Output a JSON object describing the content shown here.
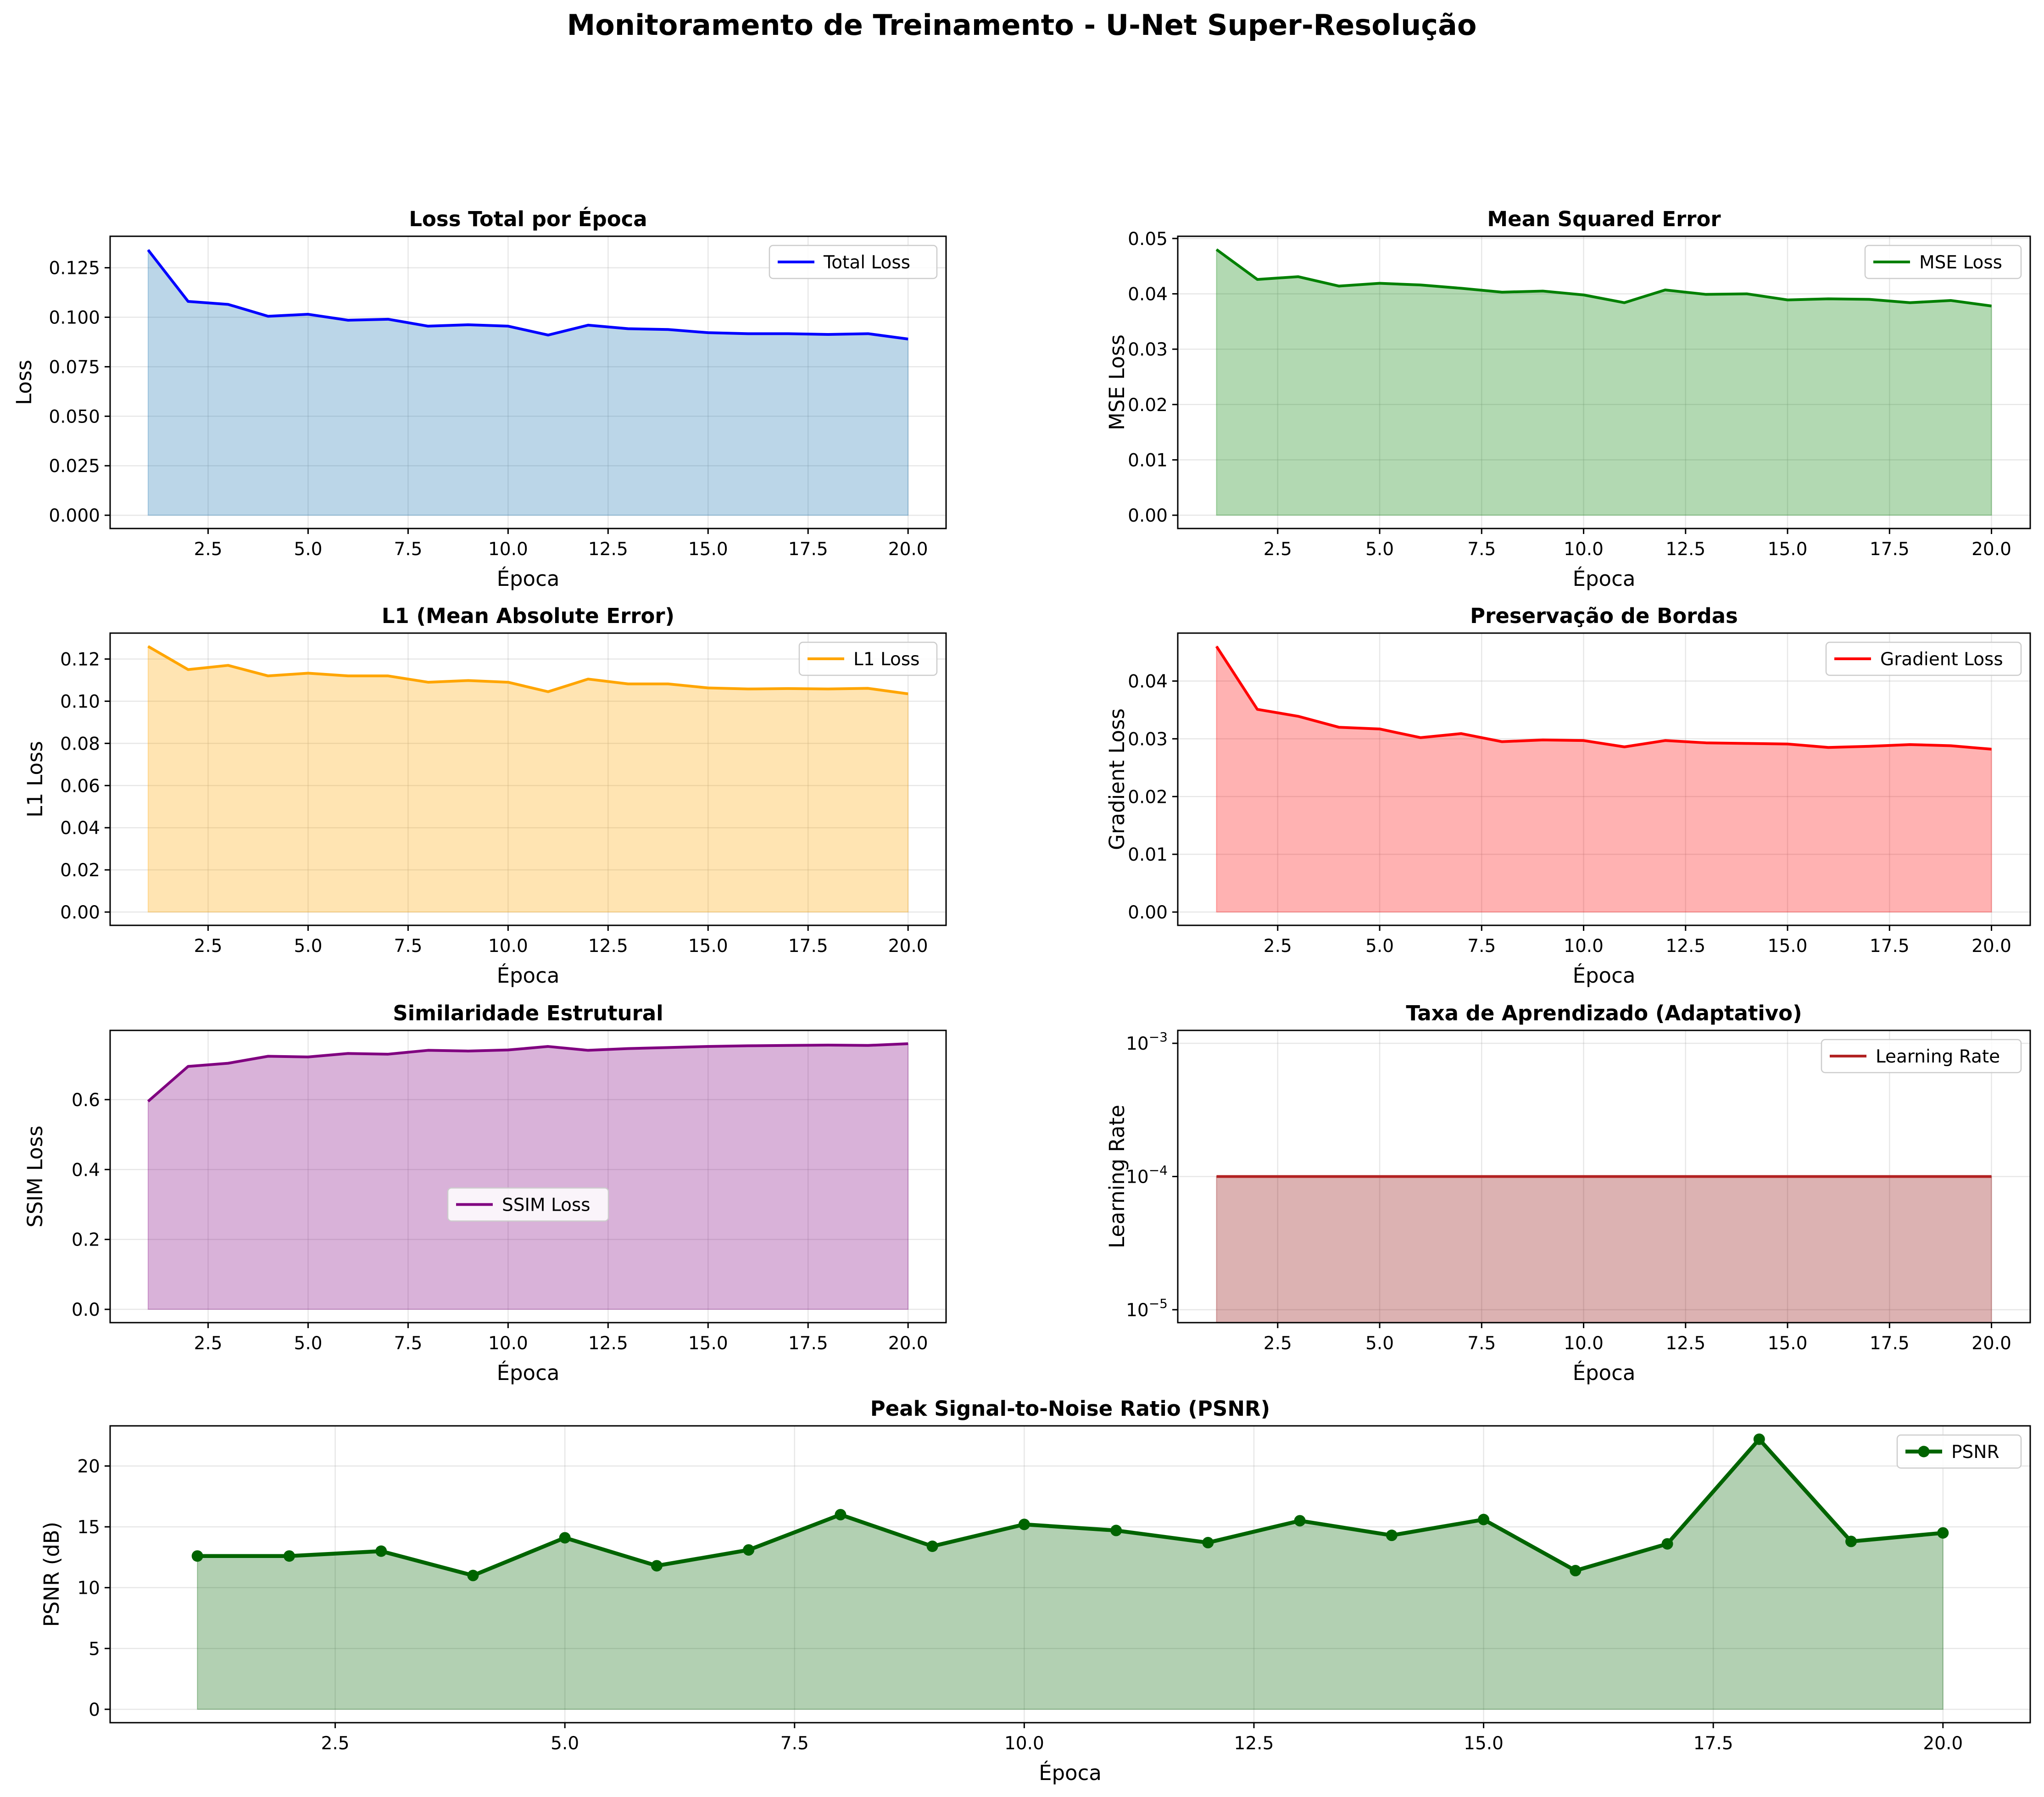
{
  "suptitle": "Monitoramento de Treinamento - U-Net Super-Resolução",
  "chart_data": [
    {
      "type": "area",
      "title": "Loss Total por Época",
      "xlabel": "Época",
      "ylabel": "Loss",
      "color": "#0000ff",
      "fill_color": "#1f77b4",
      "legend": "top-right",
      "grid": true,
      "xlim": [
        0.05,
        20.95
      ],
      "ylim": [
        -0.0067,
        0.1409
      ],
      "xticks": [
        2.5,
        5.0,
        7.5,
        10.0,
        12.5,
        15.0,
        17.5,
        20.0
      ],
      "xtick_labels": [
        "2.5",
        "5.0",
        "7.5",
        "10.0",
        "12.5",
        "15.0",
        "17.5",
        "20.0"
      ],
      "yticks": [
        0.0,
        0.025,
        0.05,
        0.075,
        0.1,
        0.125
      ],
      "ytick_labels": [
        "0.000",
        "0.025",
        "0.050",
        "0.075",
        "0.100",
        "0.125"
      ],
      "series": [
        {
          "name": "Total Loss",
          "x": [
            1,
            2,
            3,
            4,
            5,
            6,
            7,
            8,
            9,
            10,
            11,
            12,
            13,
            14,
            15,
            16,
            17,
            18,
            19,
            20
          ],
          "values": [
            0.134,
            0.108,
            0.1065,
            0.1005,
            0.1015,
            0.0985,
            0.099,
            0.0955,
            0.0962,
            0.0955,
            0.091,
            0.096,
            0.0942,
            0.0938,
            0.0922,
            0.0917,
            0.0917,
            0.0913,
            0.0917,
            0.089
          ]
        }
      ]
    },
    {
      "type": "area",
      "title": "Mean Squared Error",
      "xlabel": "Época",
      "ylabel": "MSE Loss",
      "color": "#008000",
      "fill_color": "#008000",
      "legend": "top-right",
      "grid": true,
      "xlim": [
        0.05,
        20.95
      ],
      "ylim": [
        -0.0024,
        0.0504
      ],
      "xticks": [
        2.5,
        5.0,
        7.5,
        10.0,
        12.5,
        15.0,
        17.5,
        20.0
      ],
      "xtick_labels": [
        "2.5",
        "5.0",
        "7.5",
        "10.0",
        "12.5",
        "15.0",
        "17.5",
        "20.0"
      ],
      "yticks": [
        0.0,
        0.01,
        0.02,
        0.03,
        0.04,
        0.05
      ],
      "ytick_labels": [
        "0.00",
        "0.01",
        "0.02",
        "0.03",
        "0.04",
        "0.05"
      ],
      "series": [
        {
          "name": "MSE Loss",
          "x": [
            1,
            2,
            3,
            4,
            5,
            6,
            7,
            8,
            9,
            10,
            11,
            12,
            13,
            14,
            15,
            16,
            17,
            18,
            19,
            20
          ],
          "values": [
            0.048,
            0.0426,
            0.0431,
            0.0414,
            0.0419,
            0.0416,
            0.041,
            0.0403,
            0.0405,
            0.0398,
            0.0384,
            0.0407,
            0.0399,
            0.04,
            0.0389,
            0.0391,
            0.039,
            0.0384,
            0.0388,
            0.0378
          ]
        }
      ]
    },
    {
      "type": "area",
      "title": "L1 (Mean Absolute Error)",
      "xlabel": "Época",
      "ylabel": "L1 Loss",
      "color": "#ffa500",
      "fill_color": "#ffa500",
      "legend": "top-right",
      "grid": true,
      "xlim": [
        0.05,
        20.95
      ],
      "ylim": [
        -0.0063,
        0.1323
      ],
      "xticks": [
        2.5,
        5.0,
        7.5,
        10.0,
        12.5,
        15.0,
        17.5,
        20.0
      ],
      "xtick_labels": [
        "2.5",
        "5.0",
        "7.5",
        "10.0",
        "12.5",
        "15.0",
        "17.5",
        "20.0"
      ],
      "yticks": [
        0.0,
        0.02,
        0.04,
        0.06,
        0.08,
        0.1,
        0.12
      ],
      "ytick_labels": [
        "0.00",
        "0.02",
        "0.04",
        "0.06",
        "0.08",
        "0.10",
        "0.12"
      ],
      "series": [
        {
          "name": "L1 Loss",
          "x": [
            1,
            2,
            3,
            4,
            5,
            6,
            7,
            8,
            9,
            10,
            11,
            12,
            13,
            14,
            15,
            16,
            17,
            18,
            19,
            20
          ],
          "values": [
            0.126,
            0.115,
            0.117,
            0.112,
            0.1133,
            0.112,
            0.112,
            0.109,
            0.1098,
            0.109,
            0.1045,
            0.1105,
            0.1082,
            0.1082,
            0.1063,
            0.1058,
            0.106,
            0.1058,
            0.1061,
            0.1035
          ]
        }
      ]
    },
    {
      "type": "area",
      "title": "Preservação de Bordas",
      "xlabel": "Época",
      "ylabel": "Gradient Loss",
      "color": "#ff0000",
      "fill_color": "#ff0000",
      "legend": "top-right",
      "grid": true,
      "xlim": [
        0.05,
        20.95
      ],
      "ylim": [
        -0.0023,
        0.0483
      ],
      "xticks": [
        2.5,
        5.0,
        7.5,
        10.0,
        12.5,
        15.0,
        17.5,
        20.0
      ],
      "xtick_labels": [
        "2.5",
        "5.0",
        "7.5",
        "10.0",
        "12.5",
        "15.0",
        "17.5",
        "20.0"
      ],
      "yticks": [
        0.0,
        0.01,
        0.02,
        0.03,
        0.04
      ],
      "ytick_labels": [
        "0.00",
        "0.01",
        "0.02",
        "0.03",
        "0.04"
      ],
      "series": [
        {
          "name": "Gradient Loss",
          "x": [
            1,
            2,
            3,
            4,
            5,
            6,
            7,
            8,
            9,
            10,
            11,
            12,
            13,
            14,
            15,
            16,
            17,
            18,
            19,
            20
          ],
          "values": [
            0.046,
            0.0351,
            0.0339,
            0.032,
            0.0317,
            0.0302,
            0.0309,
            0.0295,
            0.0298,
            0.0297,
            0.0286,
            0.0297,
            0.0293,
            0.0292,
            0.0291,
            0.0285,
            0.0287,
            0.029,
            0.0288,
            0.0282
          ]
        }
      ]
    },
    {
      "type": "area",
      "title": "Similaridade Estrutural",
      "xlabel": "Época",
      "ylabel": "SSIM Loss",
      "color": "#800080",
      "fill_color": "#800080",
      "legend": "center",
      "grid": true,
      "xlim": [
        0.05,
        20.95
      ],
      "ylim": [
        -0.038,
        0.798
      ],
      "xticks": [
        2.5,
        5.0,
        7.5,
        10.0,
        12.5,
        15.0,
        17.5,
        20.0
      ],
      "xtick_labels": [
        "2.5",
        "5.0",
        "7.5",
        "10.0",
        "12.5",
        "15.0",
        "17.5",
        "20.0"
      ],
      "yticks": [
        0.0,
        0.2,
        0.4,
        0.6
      ],
      "ytick_labels": [
        "0.0",
        "0.2",
        "0.4",
        "0.6"
      ],
      "series": [
        {
          "name": "SSIM Loss",
          "x": [
            1,
            2,
            3,
            4,
            5,
            6,
            7,
            8,
            9,
            10,
            11,
            12,
            13,
            14,
            15,
            16,
            17,
            18,
            19,
            20
          ],
          "values": [
            0.595,
            0.695,
            0.704,
            0.724,
            0.722,
            0.732,
            0.73,
            0.741,
            0.739,
            0.742,
            0.752,
            0.741,
            0.746,
            0.749,
            0.752,
            0.754,
            0.755,
            0.756,
            0.755,
            0.76
          ]
        }
      ]
    },
    {
      "type": "area",
      "title": "Taxa de Aprendizado (Adaptativo)",
      "xlabel": "Época",
      "ylabel": "Learning Rate",
      "color": "#b22222",
      "fill_color": "#8b0000",
      "legend": "top-right",
      "grid": true,
      "yscale": "log",
      "xlim": [
        0.05,
        20.95
      ],
      "ylim": [
        8e-06,
        0.00125
      ],
      "xticks": [
        2.5,
        5.0,
        7.5,
        10.0,
        12.5,
        15.0,
        17.5,
        20.0
      ],
      "xtick_labels": [
        "2.5",
        "5.0",
        "7.5",
        "10.0",
        "12.5",
        "15.0",
        "17.5",
        "20.0"
      ],
      "yticks": [
        1e-05,
        0.0001,
        0.001
      ],
      "ytick_labels": [
        [
          "10",
          "−5"
        ],
        [
          "10",
          "−4"
        ],
        [
          "10",
          "−3"
        ]
      ],
      "series": [
        {
          "name": "Learning Rate",
          "x": [
            1,
            2,
            3,
            4,
            5,
            6,
            7,
            8,
            9,
            10,
            11,
            12,
            13,
            14,
            15,
            16,
            17,
            18,
            19,
            20
          ],
          "values": [
            0.0001,
            0.0001,
            0.0001,
            0.0001,
            0.0001,
            0.0001,
            0.0001,
            0.0001,
            0.0001,
            0.0001,
            0.0001,
            0.0001,
            0.0001,
            0.0001,
            0.0001,
            0.0001,
            0.0001,
            0.0001,
            0.0001,
            0.0001
          ]
        }
      ]
    },
    {
      "type": "area",
      "title": "Peak Signal-to-Noise Ratio (PSNR)",
      "xlabel": "Época",
      "ylabel": "PSNR (dB)",
      "color": "#006400",
      "fill_color": "#006400",
      "legend": "top-right",
      "grid": true,
      "markers": true,
      "xlim": [
        0.05,
        20.95
      ],
      "ylim": [
        -1.1,
        23.3
      ],
      "xticks": [
        2.5,
        5.0,
        7.5,
        10.0,
        12.5,
        15.0,
        17.5,
        20.0
      ],
      "xtick_labels": [
        "2.5",
        "5.0",
        "7.5",
        "10.0",
        "12.5",
        "15.0",
        "17.5",
        "20.0"
      ],
      "yticks": [
        0,
        5,
        10,
        15,
        20
      ],
      "ytick_labels": [
        "0",
        "5",
        "10",
        "15",
        "20"
      ],
      "series": [
        {
          "name": "PSNR",
          "x": [
            1,
            2,
            3,
            4,
            5,
            6,
            7,
            8,
            9,
            10,
            11,
            12,
            13,
            14,
            15,
            16,
            17,
            18,
            19,
            20
          ],
          "values": [
            12.6,
            12.6,
            13.0,
            11.0,
            14.1,
            11.8,
            13.1,
            16.0,
            13.4,
            15.2,
            14.7,
            13.7,
            15.5,
            14.3,
            15.6,
            11.4,
            13.6,
            22.2,
            13.8,
            14.5
          ]
        }
      ]
    }
  ]
}
